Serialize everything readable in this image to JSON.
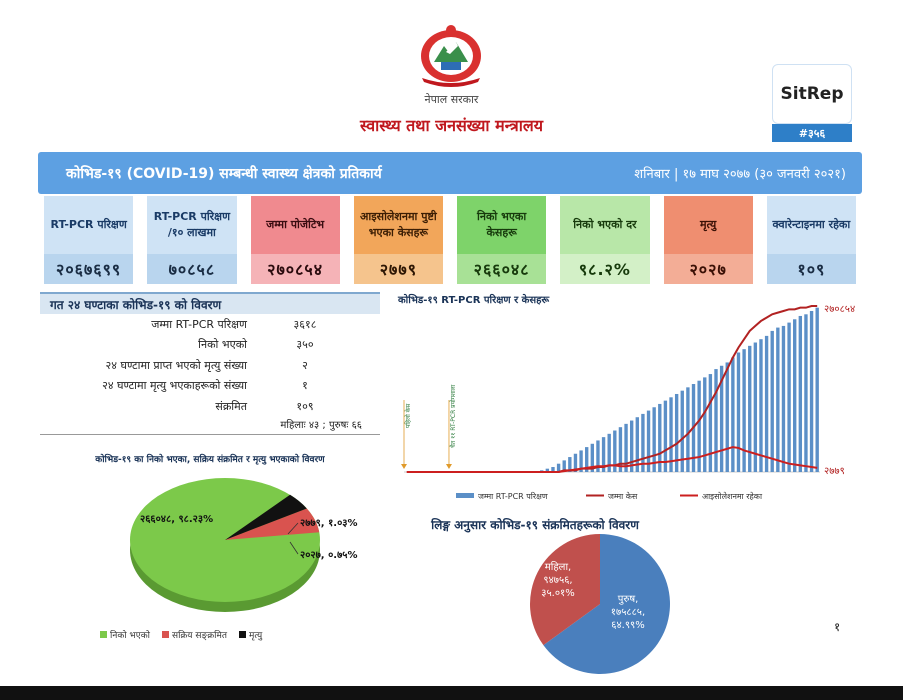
{
  "header": {
    "gov_name": "नेपाल सरकार",
    "ministry": "स्वास्थ्य तथा जनसंख्या मन्त्रालय",
    "sitrep_label": "SitRep",
    "sitrep_number": "#३५६"
  },
  "banner": {
    "title": "कोभिड-१९ (COVID-19) सम्बन्धी स्वास्थ्य क्षेत्रको प्रतिकार्य",
    "date": "शनिबार | १७ माघ २०७७ (३० जनवरी २०२१)"
  },
  "cards": [
    {
      "label": "RT-PCR परिक्षण",
      "value": "२०६७६९९",
      "theme": "blue"
    },
    {
      "label": "RT-PCR परिक्षण /१० लाखमा",
      "value": "७०८५८",
      "theme": "blue"
    },
    {
      "label": "जम्मा पोजेटिभ",
      "value": "२७०८५४",
      "theme": "pink"
    },
    {
      "label": "आइसोलेशनमा पुष्टी भएका केसहरू",
      "value": "२७७९",
      "theme": "orange"
    },
    {
      "label": "निको भएका केसहरू",
      "value": "२६६०४८",
      "theme": "green"
    },
    {
      "label": "निको भएको दर",
      "value": "९८.२%",
      "theme": "lgreen"
    },
    {
      "label": "मृत्यु",
      "value": "२०२७",
      "theme": "salmon"
    },
    {
      "label": "क्वारेन्टाइनमा रहेका",
      "value": "१०९",
      "theme": "blue"
    }
  ],
  "last24": {
    "title": "गत २४ घण्टाका कोभिड-१९ को विवरण",
    "rows": [
      {
        "label": "जम्मा RT-PCR परिक्षण",
        "value": "३६१८"
      },
      {
        "label": "निको भएको",
        "value": "३५०"
      },
      {
        "label": "२४ घण्टामा प्राप्त भएको मृत्यु संख्या",
        "value": "२"
      },
      {
        "label": "२४ घण्टामा मृत्यु भएकाहरूको संख्या",
        "value": "१"
      },
      {
        "label": "संक्रमित",
        "value": "१०९"
      }
    ],
    "footnote": "महिलाः ४३ ; पुरुषः ६६"
  },
  "pie1": {
    "title": "कोभिड-१९ का निको भएका, सक्रिय संक्रमित र मृत्यु भएकाको विवरण",
    "legend": [
      "निको भएको",
      "सक्रिय सङ्क्रमित",
      "मृत्यु"
    ],
    "colors": [
      "#7cc94a",
      "#d9534f",
      "#111111"
    ],
    "labels": [
      "२६६०४८, ९८.२३%",
      "२७७९, १.०३%",
      "२०२७, ०.७५%"
    ]
  },
  "chart_data": [
    {
      "type": "bar",
      "title": "कोभिड-१९ RT-PCR परिक्षण र केसहरू",
      "legend": [
        "जम्मा RT-PCR परिक्षण",
        "जम्मा केस",
        "आइसोलेशनमा रहेका"
      ],
      "colors": [
        "#5b8fc7",
        "#b22222",
        "#cc1f1f"
      ],
      "annotations": [
        "पहिलो केस",
        "चैत ११ RT-PCR प्रयोगशाला"
      ],
      "end_labels": [
        "२७०८५४",
        "२७७९"
      ],
      "series": [
        {
          "name": "जम्मा RT-PCR परिक्षण",
          "values": [
            0,
            0,
            0,
            0,
            0,
            0,
            0,
            0,
            0,
            0,
            0,
            0,
            0,
            0,
            0,
            0,
            0,
            0,
            0,
            0,
            0,
            0,
            0,
            0,
            0.01,
            0.02,
            0.03,
            0.05,
            0.07,
            0.09,
            0.11,
            0.13,
            0.15,
            0.17,
            0.19,
            0.21,
            0.23,
            0.25,
            0.27,
            0.29,
            0.31,
            0.33,
            0.35,
            0.37,
            0.39,
            0.41,
            0.43,
            0.45,
            0.47,
            0.49,
            0.51,
            0.53,
            0.55,
            0.57,
            0.59,
            0.62,
            0.64,
            0.66,
            0.69,
            0.72,
            0.74,
            0.76,
            0.78,
            0.8,
            0.82,
            0.85,
            0.87,
            0.88,
            0.9,
            0.92,
            0.94,
            0.95,
            0.97,
            0.99
          ]
        },
        {
          "name": "जम्मा केस",
          "values": [
            0,
            0,
            0,
            0,
            0,
            0,
            0,
            0,
            0,
            0,
            0,
            0,
            0,
            0,
            0,
            0,
            0,
            0,
            0,
            0,
            0,
            0,
            0,
            0,
            0,
            0,
            0,
            0,
            0.01,
            0.01,
            0.01,
            0.02,
            0.02,
            0.02,
            0.03,
            0.03,
            0.04,
            0.04,
            0.05,
            0.05,
            0.06,
            0.07,
            0.08,
            0.09,
            0.1,
            0.11,
            0.13,
            0.15,
            0.17,
            0.2,
            0.23,
            0.27,
            0.31,
            0.36,
            0.42,
            0.48,
            0.55,
            0.62,
            0.69,
            0.75,
            0.8,
            0.85,
            0.88,
            0.91,
            0.93,
            0.95,
            0.96,
            0.97,
            0.98,
            0.98,
            0.99,
            0.99,
            1.0,
            1.0
          ]
        },
        {
          "name": "आइसोलेशनमा रहेका",
          "values": [
            0,
            0,
            0,
            0,
            0,
            0,
            0,
            0,
            0,
            0,
            0,
            0,
            0,
            0,
            0,
            0,
            0,
            0,
            0,
            0,
            0,
            0,
            0,
            0,
            0,
            0,
            0,
            0,
            0.005,
            0.01,
            0.015,
            0.02,
            0.025,
            0.03,
            0.035,
            0.035,
            0.04,
            0.04,
            0.035,
            0.035,
            0.04,
            0.045,
            0.05,
            0.05,
            0.055,
            0.06,
            0.06,
            0.065,
            0.07,
            0.075,
            0.08,
            0.085,
            0.09,
            0.1,
            0.11,
            0.12,
            0.13,
            0.14,
            0.15,
            0.145,
            0.13,
            0.12,
            0.11,
            0.1,
            0.09,
            0.08,
            0.07,
            0.06,
            0.05,
            0.045,
            0.04,
            0.035,
            0.03,
            0.025
          ]
        }
      ]
    },
    {
      "type": "pie",
      "title": "लिङ्ग अनुसार कोभिड-१९ संक्रमितहरूको विवरण",
      "labels": [
        "पुरुष, १७५८८५, ६४.९९%",
        "महिला, ९४७५६, ३५.०१%"
      ],
      "values": [
        64.99,
        35.01
      ],
      "colors": [
        "#4a7fbd",
        "#c0504d"
      ]
    }
  ],
  "page_number": "१"
}
